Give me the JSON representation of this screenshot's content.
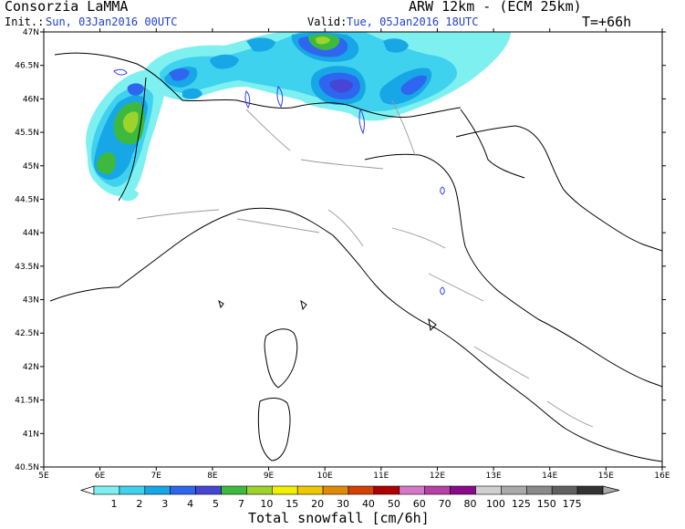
{
  "header": {
    "org": "Consorzia LaMMA",
    "model": "ARW 12km - (ECM 25km)",
    "init_label": "Init.:",
    "init_value": "Sun, 03Jan2016 00UTC",
    "valid_label": "Valid:",
    "valid_value": "Tue, 05Jan2016 18UTC",
    "lead": "T=+66h"
  },
  "axes": {
    "lat_ticks": [
      "47N",
      "46.5N",
      "46N",
      "45.5N",
      "45N",
      "44.5N",
      "44N",
      "43.5N",
      "43N",
      "42.5N",
      "42N",
      "41.5N",
      "41N",
      "40.5N"
    ],
    "lon_ticks": [
      "5E",
      "6E",
      "7E",
      "8E",
      "9E",
      "10E",
      "11E",
      "12E",
      "13E",
      "14E",
      "15E",
      "16E"
    ]
  },
  "legend": {
    "title": "Total snowfall [cm/6h]",
    "labels": [
      "1",
      "2",
      "3",
      "4",
      "5",
      "7",
      "10",
      "15",
      "20",
      "30",
      "40",
      "50",
      "60",
      "70",
      "80",
      "100",
      "125",
      "150",
      "175"
    ],
    "colors": [
      "#7ff0f0",
      "#3fd2ee",
      "#18a7e6",
      "#2e66f0",
      "#4646d6",
      "#3dba3d",
      "#9cd42b",
      "#f0f000",
      "#f0c800",
      "#e08a00",
      "#d84000",
      "#b00000",
      "#d678c8",
      "#b83ea8",
      "#8a0a8a",
      "#d0d0d0",
      "#aaaaaa",
      "#8a8a8a",
      "#606060",
      "#333333"
    ]
  }
}
